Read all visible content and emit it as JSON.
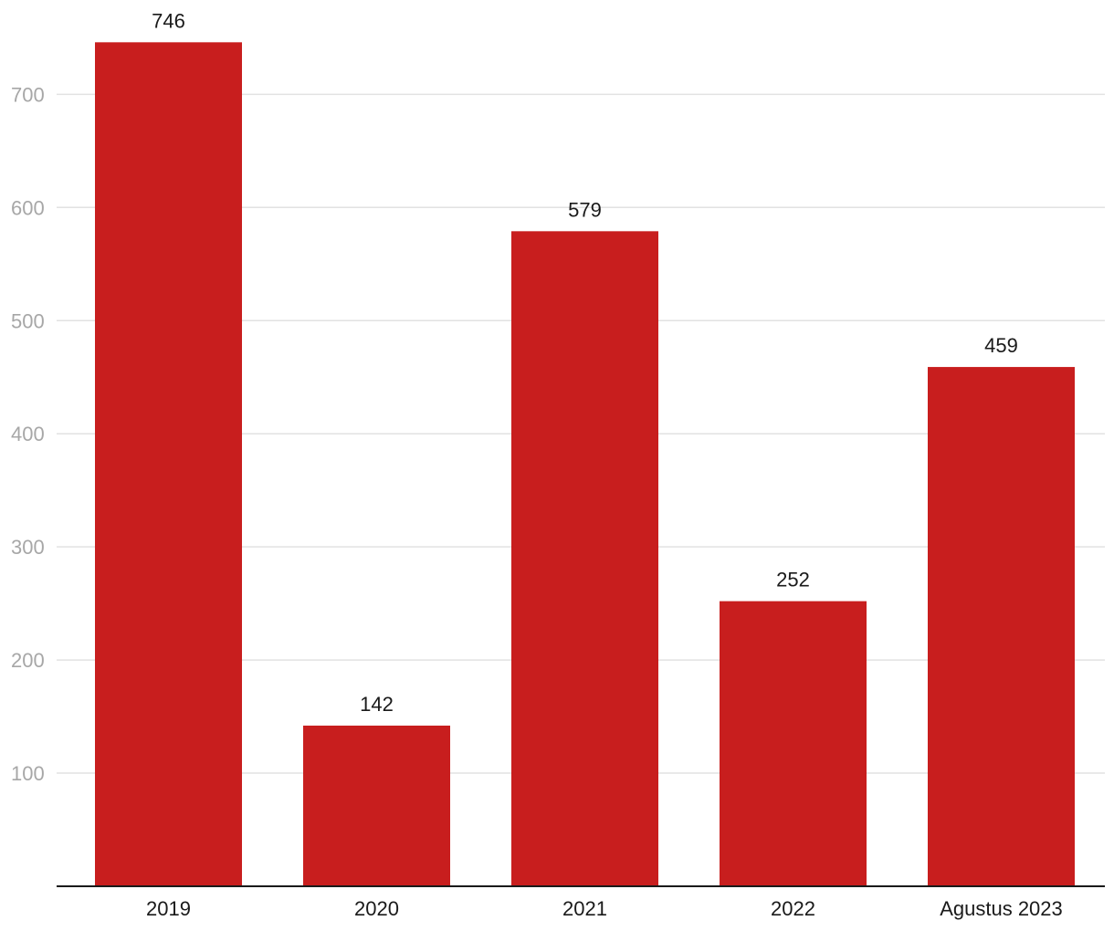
{
  "chart_data": {
    "type": "bar",
    "categories": [
      "2019",
      "2020",
      "2021",
      "2022",
      "Agustus 2023"
    ],
    "series": [
      {
        "values": [
          746,
          142,
          579,
          252,
          459
        ]
      }
    ],
    "data_labels": [
      "746",
      "142",
      "579",
      "252",
      "459"
    ],
    "y_ticks": [
      "100",
      "200",
      "300",
      "400",
      "500",
      "600",
      "700"
    ],
    "ylim": [
      0,
      780
    ],
    "grid": true,
    "bar_color": "#c81e1e"
  }
}
